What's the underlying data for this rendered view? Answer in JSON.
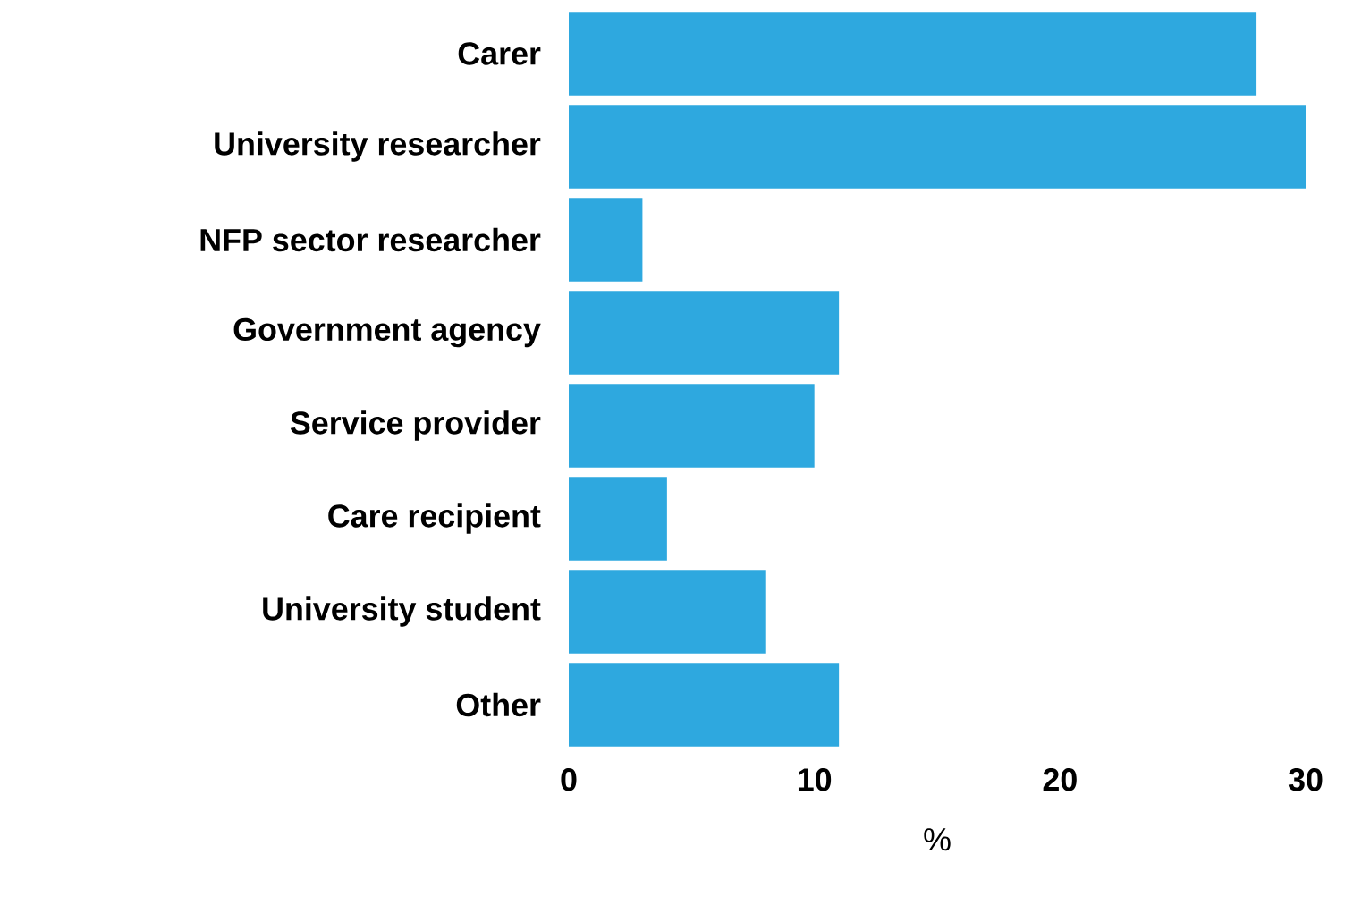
{
  "chart_data": {
    "type": "bar",
    "orientation": "horizontal",
    "xlabel": "%",
    "categories": [
      "Carer",
      "University researcher",
      "NFP sector researcher",
      "Government agency",
      "Service provider",
      "Care recipient",
      "University student",
      "Other"
    ],
    "values": [
      28,
      30,
      3,
      11,
      10,
      4,
      8,
      11
    ],
    "color": "#2ea8df",
    "xlim": [
      0,
      30
    ],
    "xticks": [
      0,
      10,
      20,
      30
    ]
  }
}
